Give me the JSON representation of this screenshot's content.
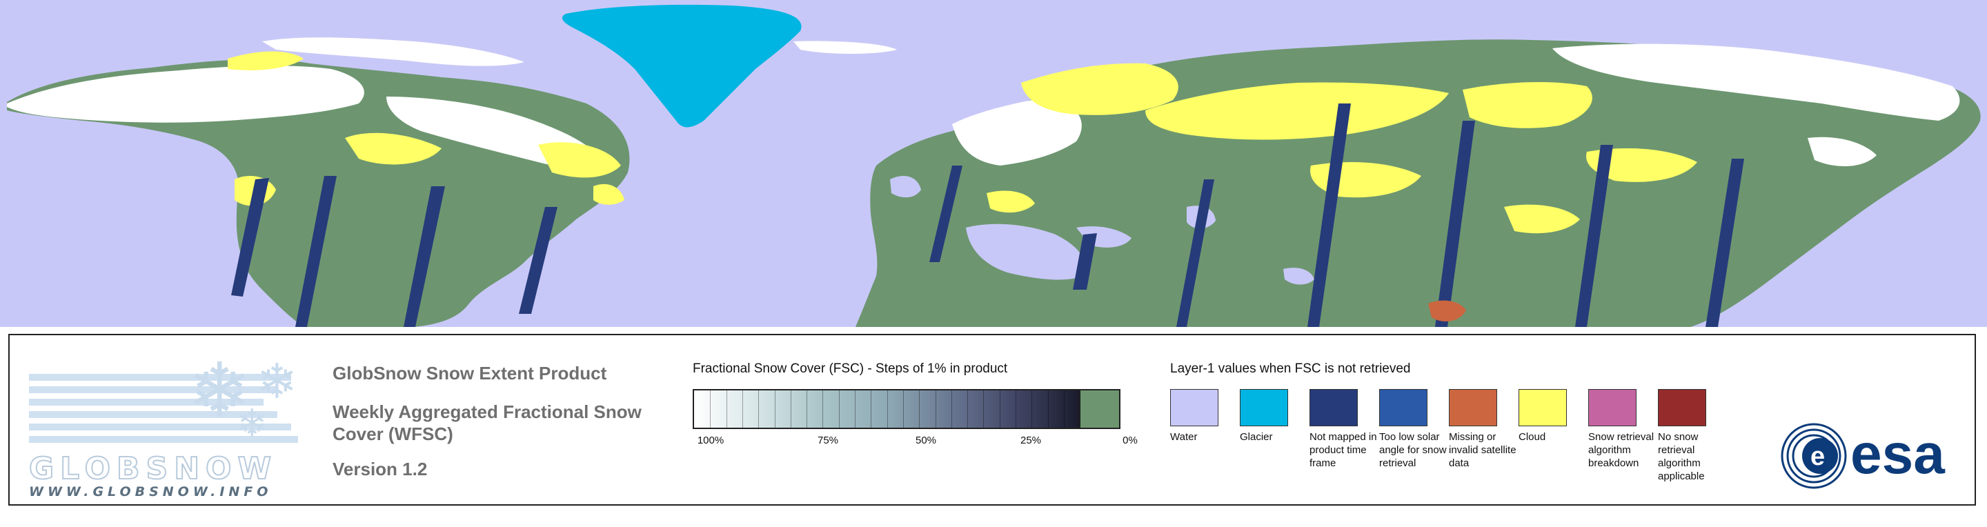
{
  "colors": {
    "water": "#c8c8f8",
    "glacier": "#00b5e2",
    "not_mapped": "#263b7a",
    "low_solar": "#2a5aa8",
    "missing": "#cc6640",
    "cloud": "#ffff66",
    "breakdown": "#c464a0",
    "not_applicable": "#952b2b",
    "no_snow": "#6d9670",
    "snow": "#ffffff",
    "esa_blue": "#0d3b7a"
  },
  "logo": {
    "word": "GLOBSNOW",
    "url": "WWW.GLOBSNOW.INFO"
  },
  "titles": {
    "product": "GlobSnow Snow Extent Product",
    "subtitle": "Weekly Aggregated Fractional Snow Cover (WFSC)",
    "version": "Version 1.2"
  },
  "fsc_legend": {
    "title": "Fractional Snow Cover (FSC) - Steps of 1% in product",
    "ticks": [
      "100%",
      "75%",
      "50%",
      "25%",
      "0%"
    ]
  },
  "layer1_legend": {
    "title": "Layer-1 values when FSC is not retrieved",
    "items": [
      {
        "key": "water",
        "label": "Water"
      },
      {
        "key": "glacier",
        "label": "Glacier"
      },
      {
        "key": "not_mapped",
        "label": "Not mapped in product time frame"
      },
      {
        "key": "low_solar",
        "label": "Too low solar angle for snow retrieval"
      },
      {
        "key": "missing",
        "label": "Missing or invalid satellite data"
      },
      {
        "key": "cloud",
        "label": "Cloud"
      },
      {
        "key": "breakdown",
        "label": "Snow retrieval algorithm breakdown"
      },
      {
        "key": "not_applicable",
        "label": "No snow retrieval algorithm applicable"
      }
    ]
  },
  "esa": {
    "word": "esa"
  }
}
